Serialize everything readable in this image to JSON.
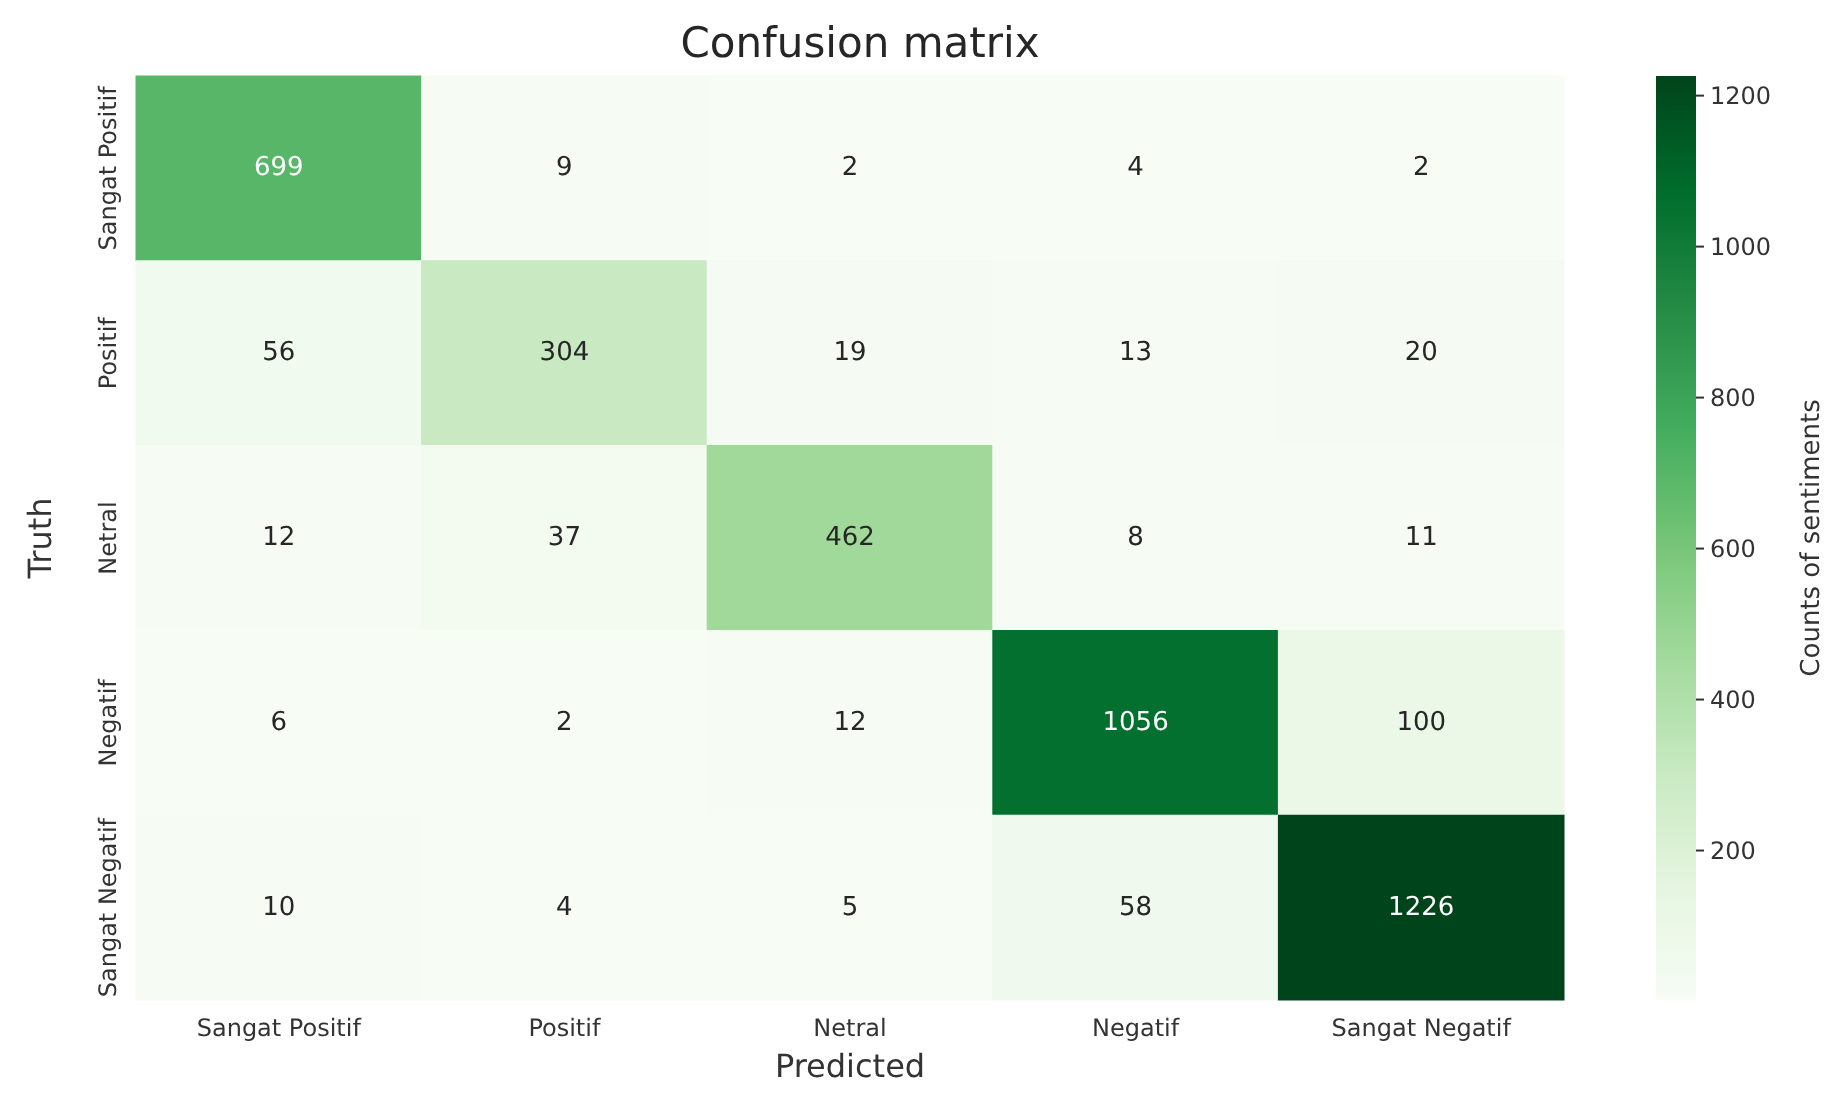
{
  "chart_data": {
    "type": "heatmap",
    "title": "Confusion matrix",
    "xlabel": "Predicted",
    "ylabel": "Truth",
    "clabel": "Counts of sentiments",
    "categories": [
      "Sangat Positif",
      "Positif",
      "Netral",
      "Negatif",
      "Sangat Negatif"
    ],
    "y_categories": [
      "Sangat Positif",
      "Positif",
      "Netral",
      "Negatif",
      "Sangat Negatif"
    ],
    "cells": [
      [
        699,
        9,
        2,
        4,
        2
      ],
      [
        56,
        304,
        19,
        13,
        20
      ],
      [
        12,
        37,
        462,
        8,
        11
      ],
      [
        6,
        2,
        12,
        1056,
        100
      ],
      [
        10,
        4,
        5,
        58,
        1226
      ]
    ],
    "data_labels": true,
    "clim": [
      2,
      1226
    ],
    "cticks": [
      200,
      400,
      600,
      800,
      1000,
      1200
    ]
  }
}
